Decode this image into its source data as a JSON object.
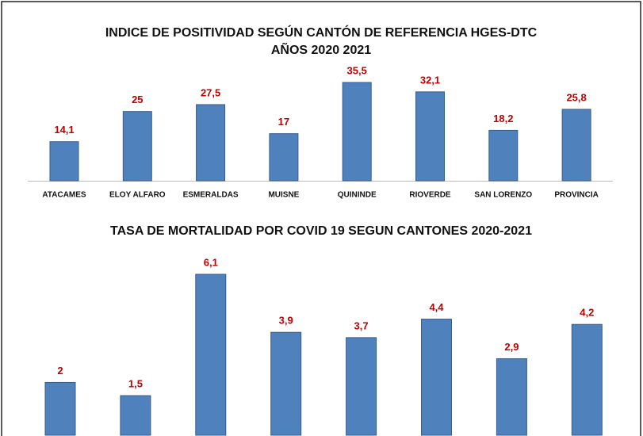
{
  "chart_data": [
    {
      "type": "bar",
      "title": [
        "INDICE DE POSITIVIDAD SEGÚN CANTÓN DE REFERENCIA HGES-DTC",
        "AÑOS 2020 2021"
      ],
      "categories": [
        "ATACAMES",
        "ELOY ALFARO",
        "ESMERALDAS",
        "MUISNE",
        "QUININDE",
        "RIOVERDE",
        "SAN LORENZO",
        "PROVINCIA"
      ],
      "values": [
        14.1,
        25,
        27.5,
        17,
        35.5,
        32.1,
        18.2,
        25.8
      ],
      "value_labels": [
        "14,1",
        "25",
        "27,5",
        "17",
        "35,5",
        "32,1",
        "18,2",
        "25,8"
      ],
      "color": "#4f81bd",
      "label_color": "#c00000"
    },
    {
      "type": "bar",
      "title": [
        "TASA DE MORTALIDAD POR COVID 19 SEGUN CANTONES 2020-2021"
      ],
      "values": [
        2,
        1.5,
        6.1,
        3.9,
        3.7,
        4.4,
        2.9,
        4.2
      ],
      "value_labels": [
        "2",
        "1,5",
        "6,1",
        "3,9",
        "3,7",
        "4,4",
        "2,9",
        "4,2"
      ],
      "color": "#4f81bd",
      "label_color": "#c00000"
    }
  ]
}
